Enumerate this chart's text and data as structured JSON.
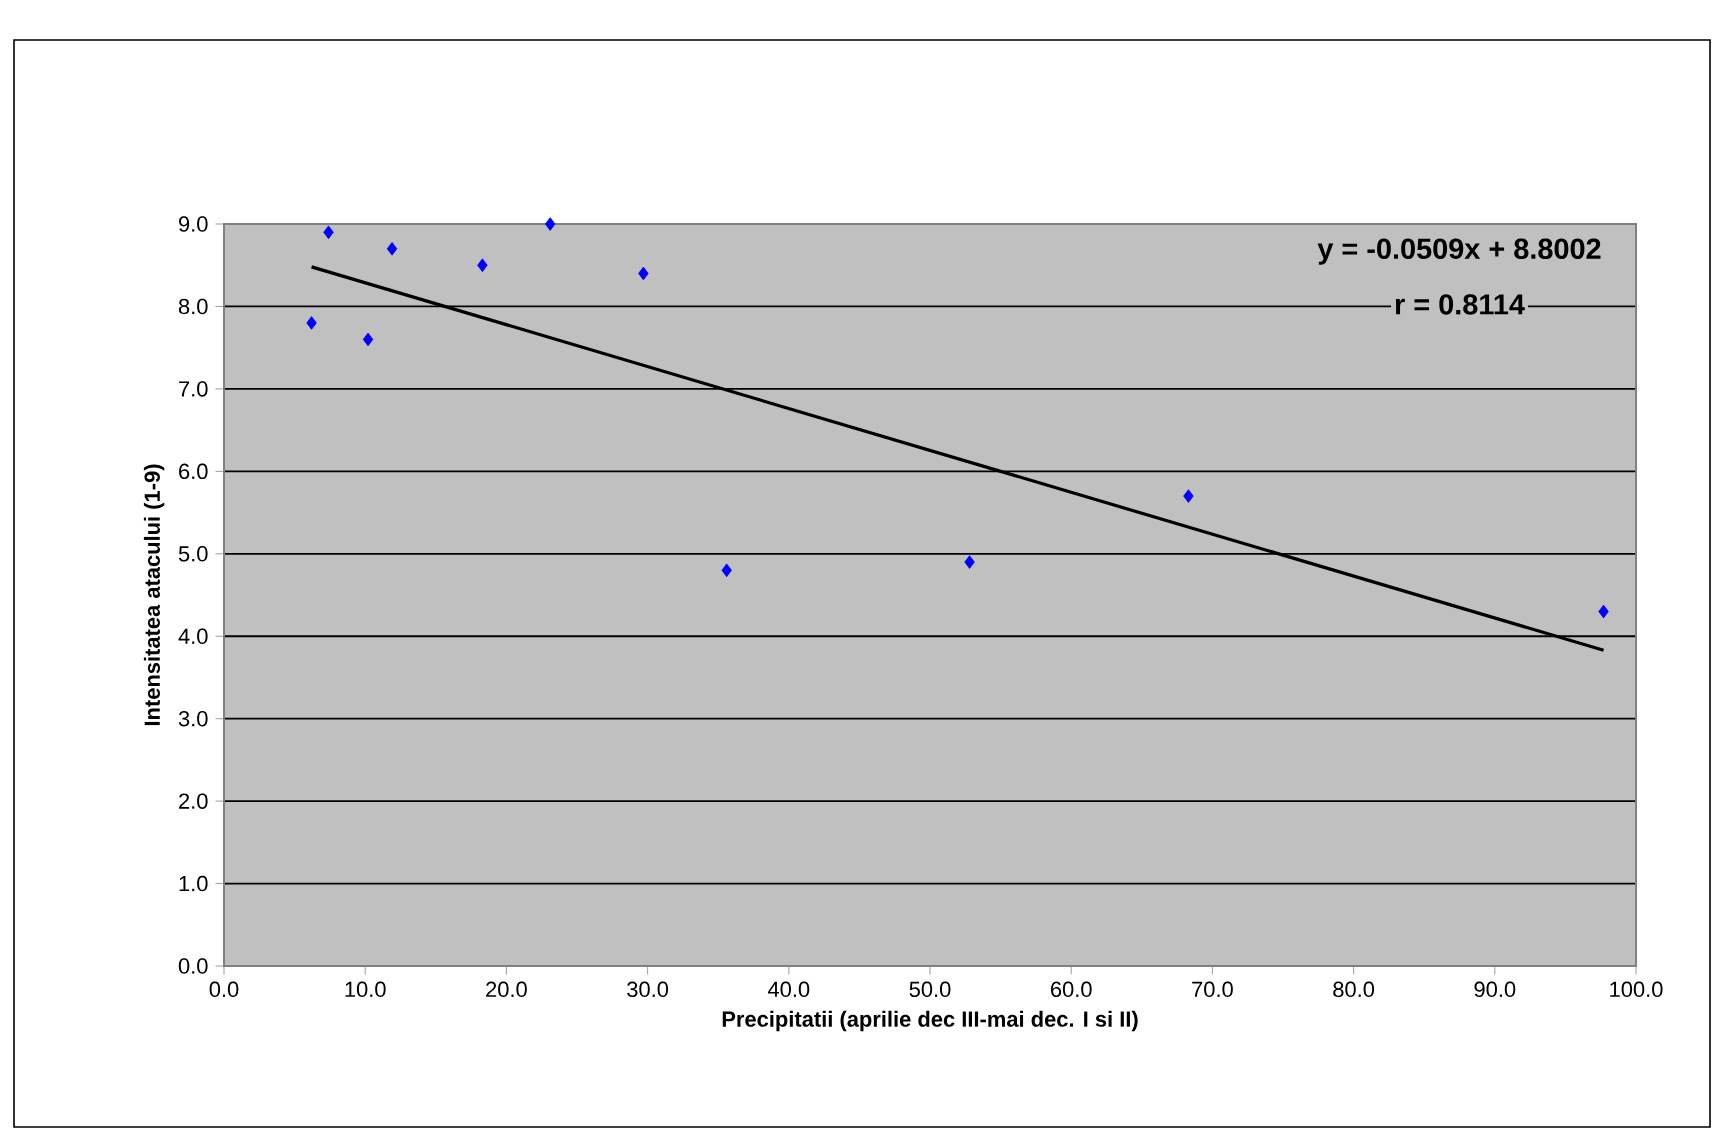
{
  "chart_data": {
    "type": "scatter",
    "xlabel": "Precipitatii (aprilie dec III-mai dec. I si II)",
    "ylabel": "Intensitatea atacului (1-9)",
    "xlim": [
      0,
      100
    ],
    "ylim": [
      0,
      9
    ],
    "xticks": [
      {
        "value": 0,
        "label": "0.0"
      },
      {
        "value": 10,
        "label": "10.0"
      },
      {
        "value": 20,
        "label": "20.0"
      },
      {
        "value": 30,
        "label": "30.0"
      },
      {
        "value": 40,
        "label": "40.0"
      },
      {
        "value": 50,
        "label": "50.0"
      },
      {
        "value": 60,
        "label": "60.0"
      },
      {
        "value": 70,
        "label": "70.0"
      },
      {
        "value": 80,
        "label": "80.0"
      },
      {
        "value": 90,
        "label": "90.0"
      },
      {
        "value": 100,
        "label": "100.0"
      }
    ],
    "yticks": [
      {
        "value": 0,
        "label": "0.0"
      },
      {
        "value": 1,
        "label": "1.0"
      },
      {
        "value": 2,
        "label": "2.0"
      },
      {
        "value": 3,
        "label": "3.0"
      },
      {
        "value": 4,
        "label": "4.0"
      },
      {
        "value": 5,
        "label": "5.0"
      },
      {
        "value": 6,
        "label": "6.0"
      },
      {
        "value": 7,
        "label": "7.0"
      },
      {
        "value": 8,
        "label": "8.0"
      },
      {
        "value": 9,
        "label": "9.0"
      }
    ],
    "grid": "y",
    "marker": "diamond",
    "annotations": [
      "y = -0.0509x + 8.8002",
      "r = 0.8114"
    ],
    "series": [
      {
        "color": "#0000ff",
        "x": [
          6.2,
          7.4,
          10.2,
          11.9,
          18.3,
          23.1,
          29.7,
          35.6,
          52.8,
          68.3,
          97.7
        ],
        "values": [
          7.8,
          8.9,
          7.6,
          8.7,
          8.5,
          9.0,
          8.4,
          4.8,
          4.9,
          5.7,
          4.3
        ]
      },
      {
        "type": "line",
        "marker": "none",
        "color": "#000000",
        "x": [
          6.2,
          97.7
        ],
        "values": [
          8.48,
          3.83
        ]
      }
    ]
  }
}
